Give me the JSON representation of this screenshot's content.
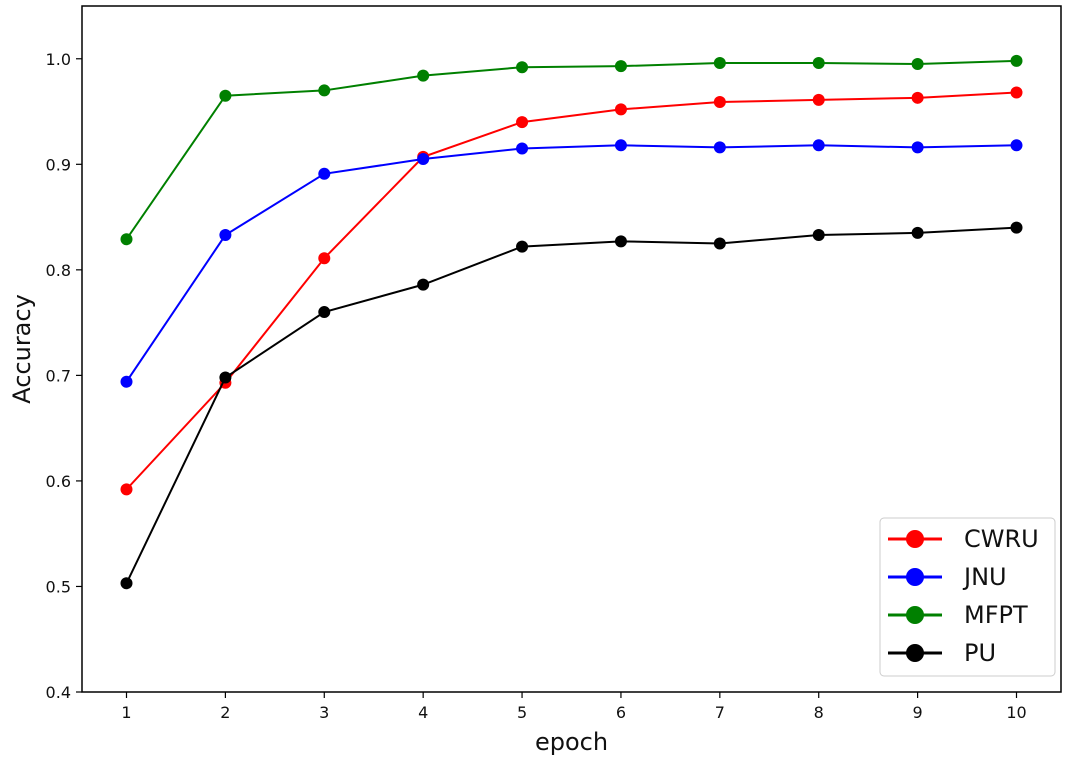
{
  "chart_data": {
    "type": "line",
    "title": "",
    "xlabel": "epoch",
    "ylabel": "Accuracy",
    "x": [
      1,
      2,
      3,
      4,
      5,
      6,
      7,
      8,
      9,
      10
    ],
    "xlim": [
      0.55,
      10.45
    ],
    "ylim": [
      0.4,
      1.05
    ],
    "xticks": [
      1,
      2,
      3,
      4,
      5,
      6,
      7,
      8,
      9,
      10
    ],
    "yticks": [
      0.4,
      0.5,
      0.6,
      0.7,
      0.8,
      0.9,
      1.0
    ],
    "ytick_labels": [
      "0.4",
      "0.5",
      "0.6",
      "0.7",
      "0.8",
      "0.9",
      "1.0"
    ],
    "grid": false,
    "legend_position": "bottom-right",
    "series": [
      {
        "name": "CWRU",
        "color": "#ff0000",
        "values": [
          0.592,
          0.693,
          0.811,
          0.907,
          0.94,
          0.952,
          0.959,
          0.961,
          0.963,
          0.968
        ]
      },
      {
        "name": "JNU",
        "color": "#0000ff",
        "values": [
          0.694,
          0.833,
          0.891,
          0.905,
          0.915,
          0.918,
          0.916,
          0.918,
          0.916,
          0.918
        ]
      },
      {
        "name": "MFPT",
        "color": "#008000",
        "values": [
          0.829,
          0.965,
          0.97,
          0.984,
          0.992,
          0.993,
          0.996,
          0.996,
          0.995,
          0.998
        ]
      },
      {
        "name": "PU",
        "color": "#000000",
        "values": [
          0.503,
          0.698,
          0.76,
          0.786,
          0.822,
          0.827,
          0.825,
          0.833,
          0.835,
          0.84
        ]
      }
    ]
  }
}
